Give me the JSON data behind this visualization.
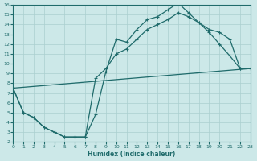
{
  "xlabel": "Humidex (Indice chaleur)",
  "bg_color": "#cce8e8",
  "grid_color": "#aacfcf",
  "line_color": "#1f6b6b",
  "xlim": [
    0,
    23
  ],
  "ylim": [
    2,
    16
  ],
  "xticks": [
    0,
    1,
    2,
    3,
    4,
    5,
    6,
    7,
    8,
    9,
    10,
    11,
    12,
    13,
    14,
    15,
    16,
    17,
    18,
    19,
    20,
    21,
    22,
    23
  ],
  "yticks": [
    2,
    3,
    4,
    5,
    6,
    7,
    8,
    9,
    10,
    11,
    12,
    13,
    14,
    15,
    16
  ],
  "curve1_x": [
    0,
    1,
    2,
    3,
    4,
    5,
    6,
    7,
    8,
    9,
    10,
    11,
    12,
    13,
    14,
    15,
    16,
    17,
    18,
    19,
    20,
    21,
    22,
    23
  ],
  "curve1_y": [
    7.5,
    5.0,
    4.5,
    3.5,
    3.0,
    2.5,
    2.5,
    2.5,
    4.8,
    9.2,
    12.5,
    12.2,
    13.5,
    14.5,
    14.8,
    15.5,
    16.2,
    15.2,
    14.2,
    13.2,
    12.0,
    10.8,
    9.5,
    9.5
  ],
  "curve2_x": [
    0,
    1,
    2,
    3,
    4,
    5,
    6,
    7,
    8,
    9,
    10,
    11,
    12,
    13,
    14,
    15,
    16,
    17,
    18,
    19,
    20,
    21,
    22,
    23
  ],
  "curve2_y": [
    7.5,
    5.0,
    4.5,
    3.5,
    3.0,
    2.5,
    2.5,
    2.5,
    8.5,
    9.5,
    11.0,
    11.5,
    12.5,
    13.5,
    14.0,
    14.5,
    15.2,
    14.8,
    14.2,
    13.5,
    13.2,
    12.5,
    9.5,
    9.5
  ],
  "line3_x": [
    0,
    23
  ],
  "line3_y": [
    7.5,
    9.5
  ]
}
